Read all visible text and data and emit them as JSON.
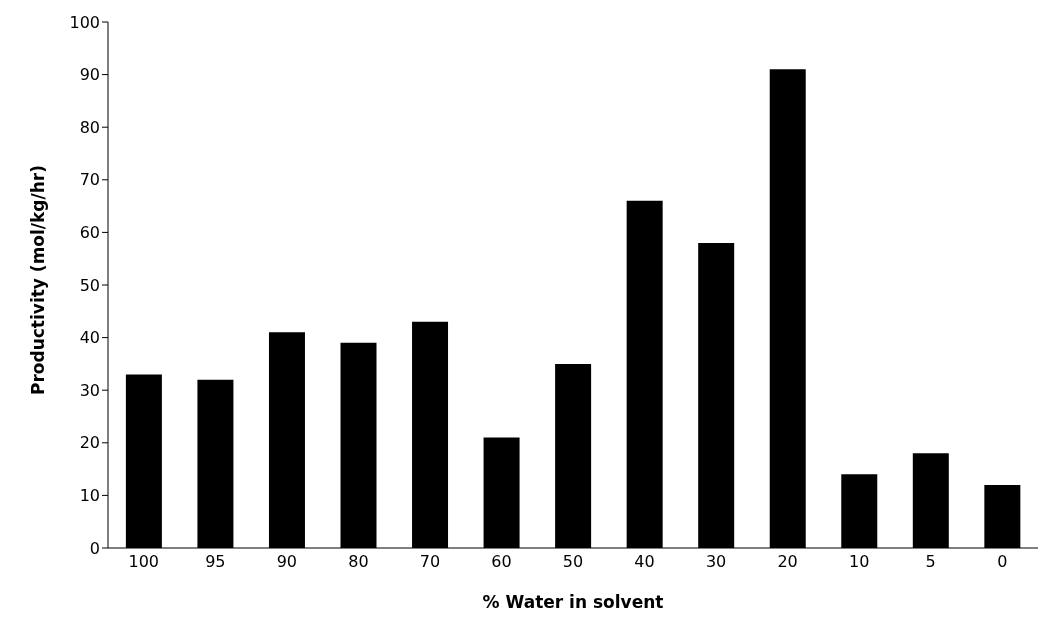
{
  "chart_data": {
    "type": "bar",
    "xlabel": "% Water in solvent",
    "ylabel": "Productivity (mol/kg/hr)",
    "categories": [
      "100",
      "95",
      "90",
      "80",
      "70",
      "60",
      "50",
      "40",
      "30",
      "20",
      "10",
      "5",
      "0"
    ],
    "values": [
      33,
      32,
      41,
      39,
      43,
      21,
      35,
      66,
      58,
      91,
      14,
      18,
      12
    ],
    "color": "#000000",
    "ylim": [
      0,
      100
    ],
    "yticks": [
      0,
      10,
      20,
      30,
      40,
      50,
      60,
      70,
      80,
      90,
      100
    ],
    "grid": false,
    "legend": false
  }
}
